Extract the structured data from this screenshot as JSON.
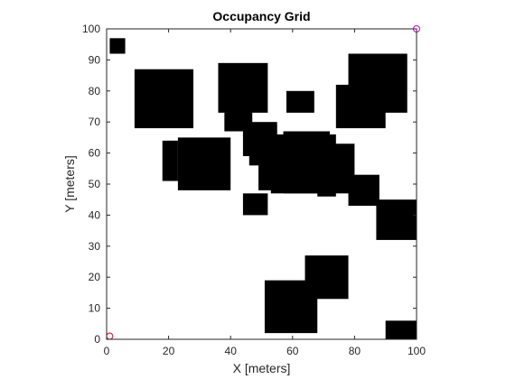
{
  "chart_data": {
    "type": "heatmap",
    "title": "Occupancy Grid",
    "xlabel": "X [meters]",
    "ylabel": "Y [meters]",
    "xlim": [
      0,
      100
    ],
    "ylim": [
      0,
      100
    ],
    "xticks": [
      0,
      20,
      40,
      60,
      80,
      100
    ],
    "yticks": [
      0,
      10,
      20,
      30,
      40,
      50,
      60,
      70,
      80,
      90,
      100
    ],
    "grid": false,
    "occupied_color": "#000000",
    "free_color": "#ffffff",
    "occupied_cells": [
      {
        "x": [
          1,
          6
        ],
        "y": [
          92,
          97
        ]
      },
      {
        "x": [
          9,
          28
        ],
        "y": [
          68,
          87
        ]
      },
      {
        "x": [
          18,
          23
        ],
        "y": [
          51,
          64
        ]
      },
      {
        "x": [
          23,
          40
        ],
        "y": [
          48,
          65
        ]
      },
      {
        "x": [
          36,
          52
        ],
        "y": [
          73,
          89
        ]
      },
      {
        "x": [
          38,
          47
        ],
        "y": [
          67,
          76
        ]
      },
      {
        "x": [
          44,
          55
        ],
        "y": [
          59,
          70
        ]
      },
      {
        "x": [
          46,
          55
        ],
        "y": [
          56,
          69
        ]
      },
      {
        "x": [
          49,
          64
        ],
        "y": [
          48,
          66
        ]
      },
      {
        "x": [
          53,
          64
        ],
        "y": [
          47,
          63
        ]
      },
      {
        "x": [
          58,
          67
        ],
        "y": [
          73,
          80
        ]
      },
      {
        "x": [
          57,
          72
        ],
        "y": [
          47,
          67
        ]
      },
      {
        "x": [
          64,
          80
        ],
        "y": [
          47,
          63
        ]
      },
      {
        "x": [
          68,
          74
        ],
        "y": [
          46,
          66
        ]
      },
      {
        "x": [
          78,
          88
        ],
        "y": [
          43,
          53
        ]
      },
      {
        "x": [
          74,
          90
        ],
        "y": [
          68,
          82
        ]
      },
      {
        "x": [
          78,
          97
        ],
        "y": [
          73,
          92
        ]
      },
      {
        "x": [
          87,
          100
        ],
        "y": [
          32,
          45
        ]
      },
      {
        "x": [
          44,
          52
        ],
        "y": [
          40,
          47
        ]
      },
      {
        "x": [
          64,
          78
        ],
        "y": [
          13,
          27
        ]
      },
      {
        "x": [
          51,
          68
        ],
        "y": [
          2,
          19
        ]
      },
      {
        "x": [
          90,
          100
        ],
        "y": [
          0,
          6
        ]
      }
    ],
    "markers": [
      {
        "x": 1,
        "y": 1,
        "color": "#e0001a"
      },
      {
        "x": 100,
        "y": 100,
        "color": "#d400d4"
      }
    ]
  }
}
